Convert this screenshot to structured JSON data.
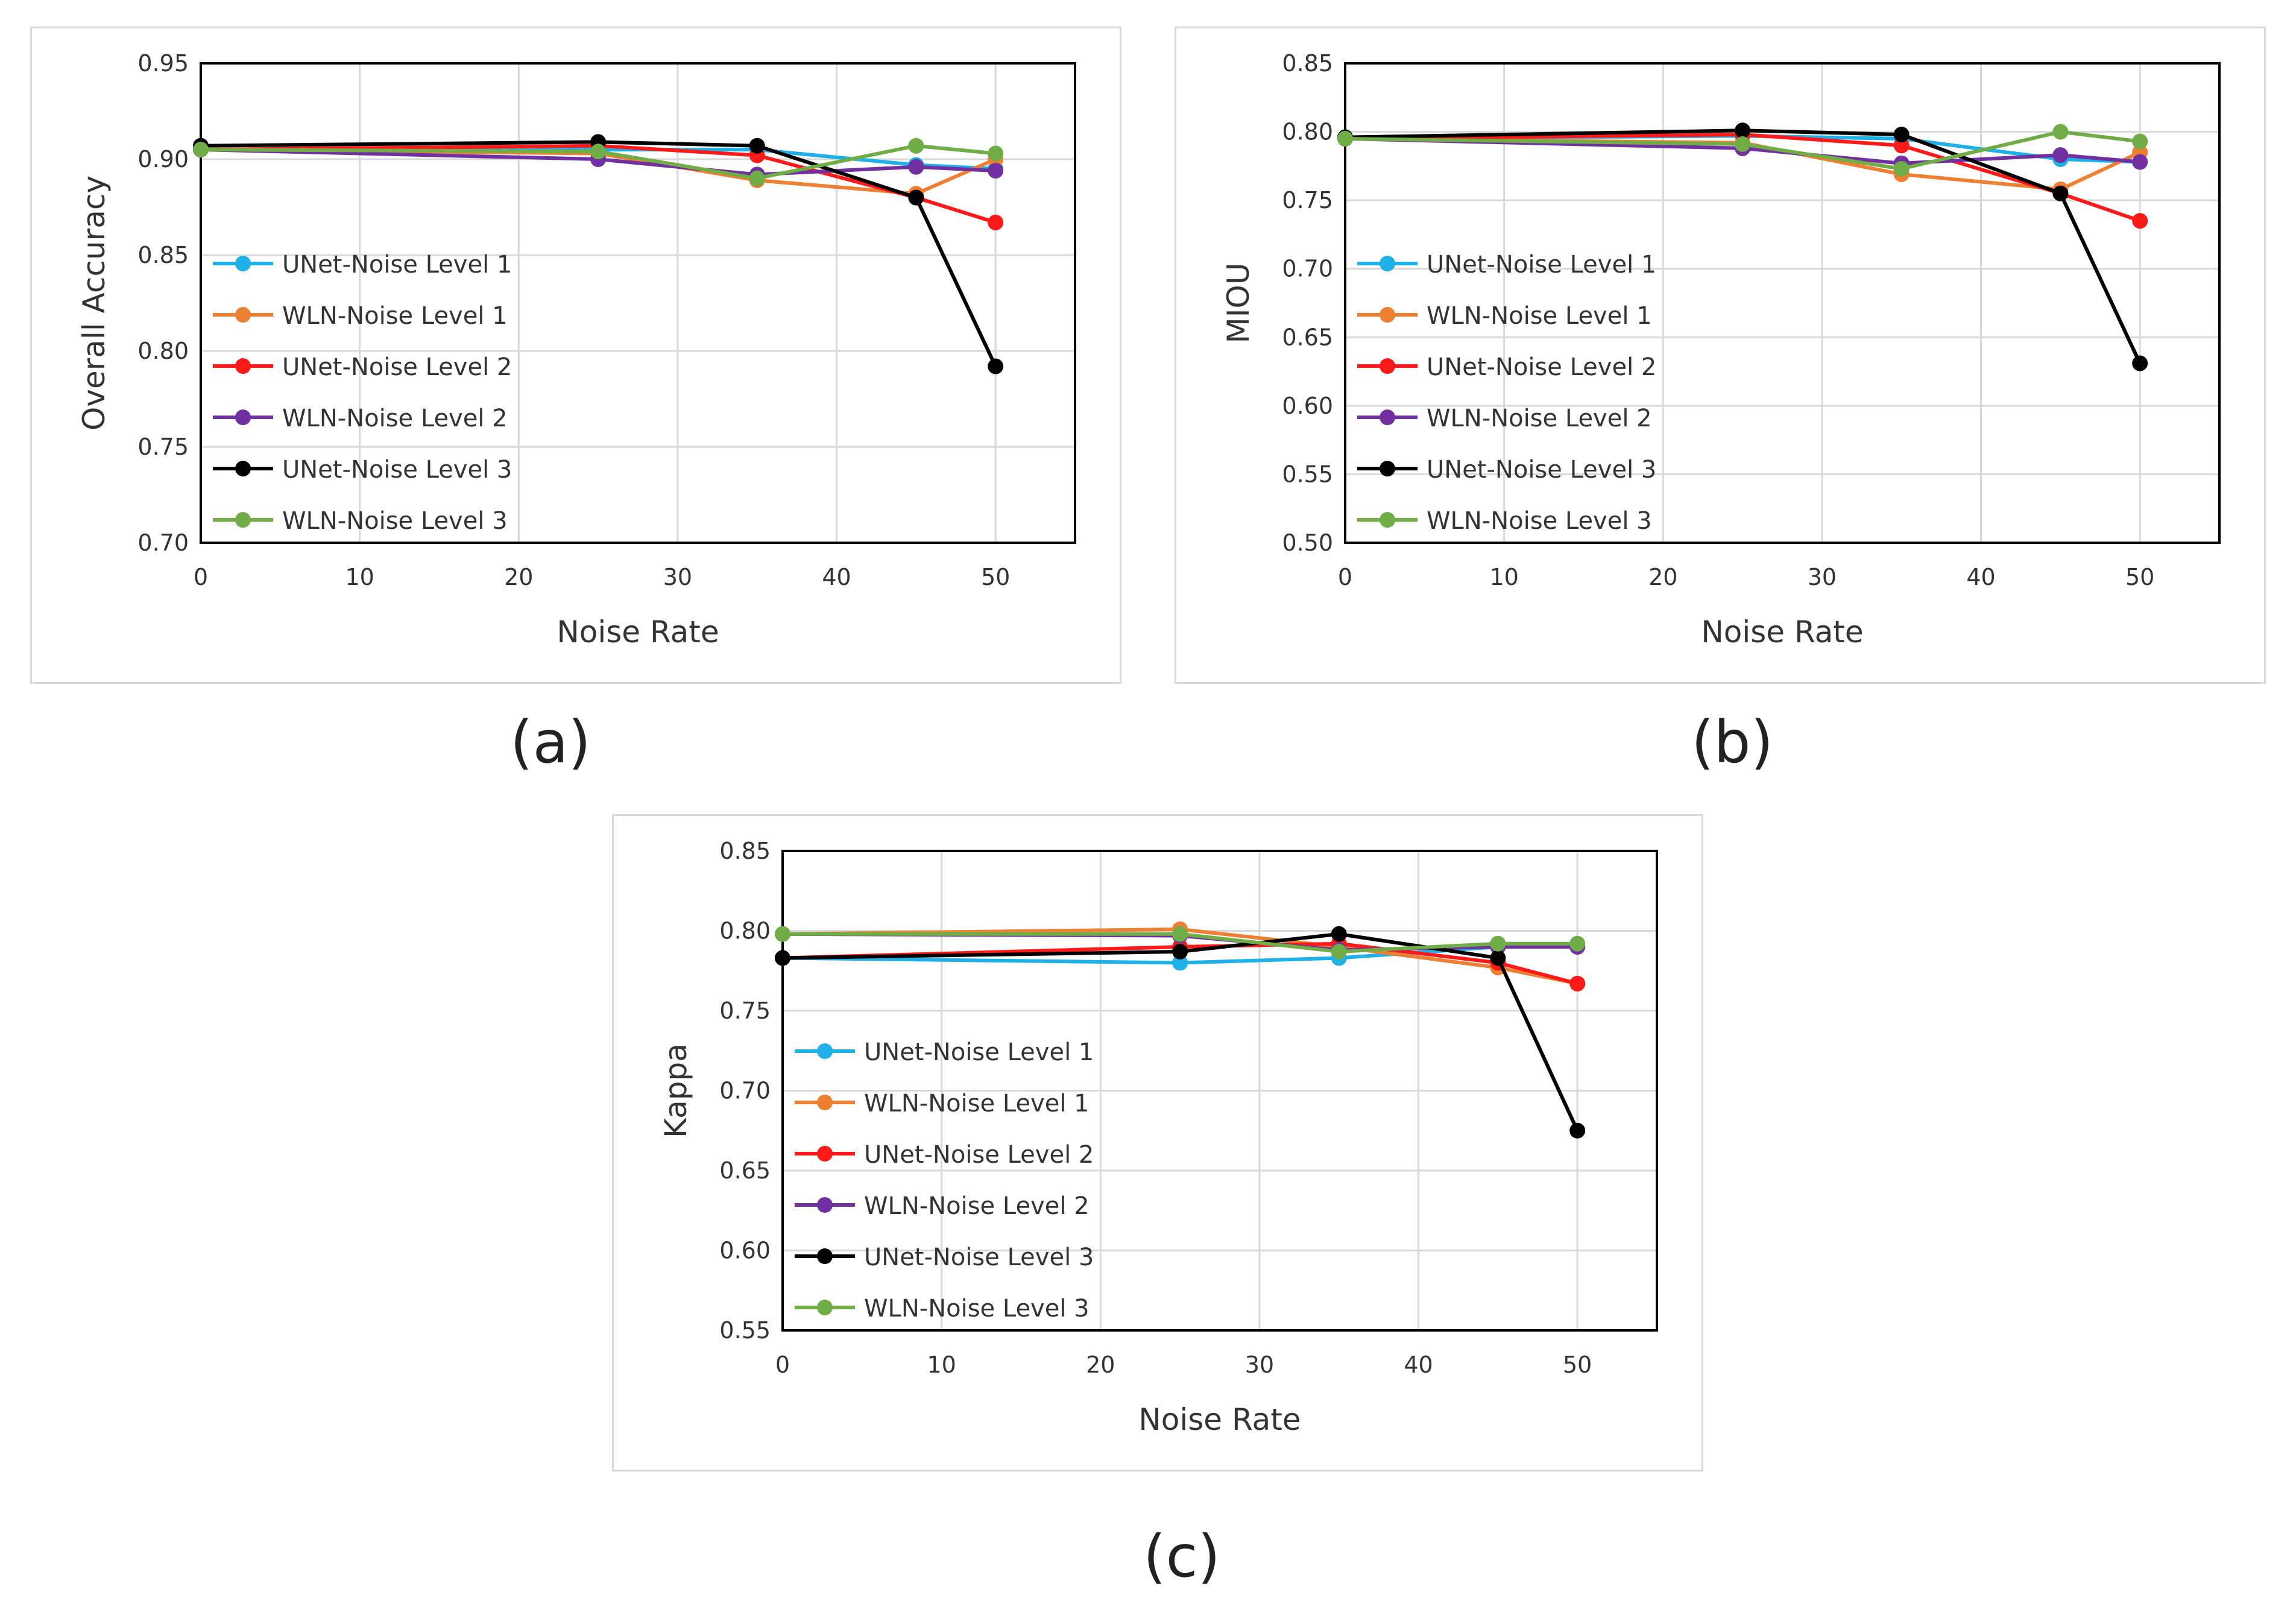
{
  "colors": {
    "UNet-Noise Level 1": "#1fb0e8",
    "WLN-Noise Level 1": "#ee8033",
    "UNet-Noise Level 2": "#ff1a1a",
    "WLN-Noise Level 2": "#7030a0",
    "UNet-Noise Level 3": "#000000",
    "WLN-Noise Level 3": "#70ad47"
  },
  "chart_data": [
    {
      "type": "line",
      "caption": "(a)",
      "xlabel": "Noise Rate",
      "ylabel": "Overall Accuracy",
      "xlim": [
        0,
        55
      ],
      "ylim": [
        0.7,
        0.95
      ],
      "xticks": [
        "0",
        "10",
        "20",
        "30",
        "40",
        "50"
      ],
      "yticks": [
        "0.70",
        "0.75",
        "0.80",
        "0.85",
        "0.90",
        "0.95"
      ],
      "x": [
        0,
        25,
        35,
        45,
        50
      ],
      "series": [
        {
          "name": "UNet-Noise Level 1",
          "values": [
            0.905,
            0.905,
            0.905,
            0.897,
            0.895
          ]
        },
        {
          "name": "WLN-Noise Level 1",
          "values": [
            0.905,
            0.903,
            0.889,
            0.882,
            0.9
          ]
        },
        {
          "name": "UNet-Noise Level 2",
          "values": [
            0.905,
            0.907,
            0.902,
            0.88,
            0.867
          ]
        },
        {
          "name": "WLN-Noise Level 2",
          "values": [
            0.905,
            0.9,
            0.892,
            0.896,
            0.894
          ]
        },
        {
          "name": "UNet-Noise Level 3",
          "values": [
            0.907,
            0.909,
            0.907,
            0.88,
            0.792
          ]
        },
        {
          "name": "WLN-Noise Level 3",
          "values": [
            0.905,
            0.904,
            0.89,
            0.907,
            0.903
          ]
        }
      ]
    },
    {
      "type": "line",
      "caption": "(b)",
      "xlabel": "Noise Rate",
      "ylabel": "MIOU",
      "xlim": [
        0,
        55
      ],
      "ylim": [
        0.5,
        0.85
      ],
      "xticks": [
        "0",
        "10",
        "20",
        "30",
        "40",
        "50"
      ],
      "yticks": [
        "0.50",
        "0.55",
        "0.60",
        "0.65",
        "0.70",
        "0.75",
        "0.80",
        "0.85"
      ],
      "x": [
        0,
        25,
        35,
        45,
        50
      ],
      "series": [
        {
          "name": "UNet-Noise Level 1",
          "values": [
            0.795,
            0.797,
            0.795,
            0.78,
            0.778
          ]
        },
        {
          "name": "WLN-Noise Level 1",
          "values": [
            0.795,
            0.792,
            0.769,
            0.758,
            0.785
          ]
        },
        {
          "name": "UNet-Noise Level 2",
          "values": [
            0.795,
            0.798,
            0.79,
            0.755,
            0.735
          ]
        },
        {
          "name": "WLN-Noise Level 2",
          "values": [
            0.795,
            0.788,
            0.777,
            0.783,
            0.778
          ]
        },
        {
          "name": "UNet-Noise Level 3",
          "values": [
            0.796,
            0.801,
            0.798,
            0.755,
            0.631
          ]
        },
        {
          "name": "WLN-Noise Level 3",
          "values": [
            0.795,
            0.791,
            0.773,
            0.8,
            0.793
          ]
        }
      ]
    },
    {
      "type": "line",
      "caption": "(c)",
      "xlabel": "Noise Rate",
      "ylabel": "Kappa",
      "xlim": [
        0,
        55
      ],
      "ylim": [
        0.55,
        0.85
      ],
      "xticks": [
        "0",
        "10",
        "20",
        "30",
        "40",
        "50"
      ],
      "yticks": [
        "0.55",
        "0.60",
        "0.65",
        "0.70",
        "0.75",
        "0.80",
        "0.85"
      ],
      "x": [
        0,
        25,
        35,
        45,
        50
      ],
      "series": [
        {
          "name": "UNet-Noise Level 1",
          "values": [
            0.783,
            0.78,
            0.783,
            0.79,
            0.79
          ]
        },
        {
          "name": "WLN-Noise Level 1",
          "values": [
            0.798,
            0.801,
            0.79,
            0.777,
            0.767
          ]
        },
        {
          "name": "UNet-Noise Level 2",
          "values": [
            0.783,
            0.79,
            0.792,
            0.78,
            0.767
          ]
        },
        {
          "name": "WLN-Noise Level 2",
          "values": [
            0.798,
            0.797,
            0.788,
            0.79,
            0.79
          ]
        },
        {
          "name": "UNet-Noise Level 3",
          "values": [
            0.783,
            0.787,
            0.798,
            0.783,
            0.675
          ]
        },
        {
          "name": "WLN-Noise Level 3",
          "values": [
            0.798,
            0.798,
            0.787,
            0.792,
            0.792
          ]
        }
      ]
    }
  ]
}
